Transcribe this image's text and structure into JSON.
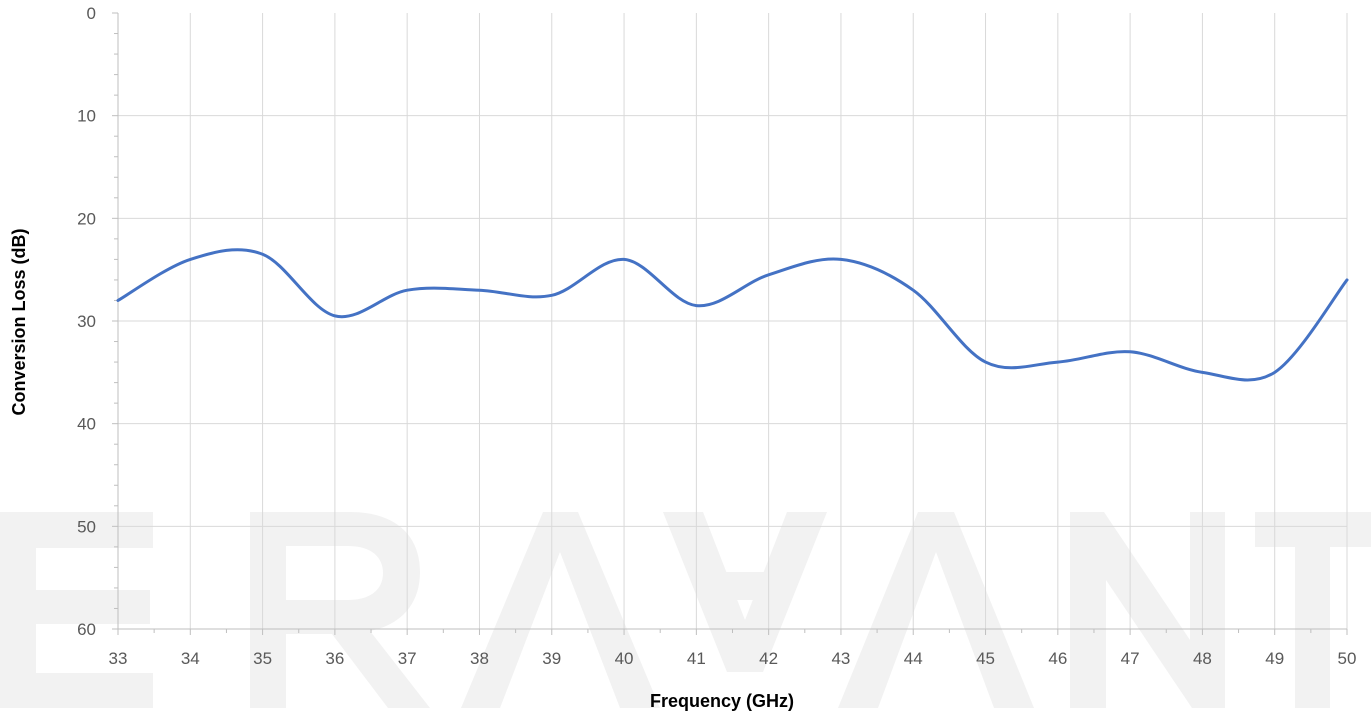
{
  "chart_data": {
    "type": "line",
    "title": "",
    "xlabel": "Frequency (GHz)",
    "ylabel": "Conversion Loss (dB)",
    "xlim": [
      33,
      50
    ],
    "ylim": [
      0,
      60
    ],
    "y_axis_reversed": true,
    "x_ticks": [
      "33",
      "34",
      "35",
      "36",
      "37",
      "38",
      "39",
      "40",
      "41",
      "42",
      "43",
      "44",
      "45",
      "46",
      "47",
      "48",
      "49",
      "50"
    ],
    "y_ticks": [
      "0",
      "10",
      "20",
      "30",
      "40",
      "50",
      "60"
    ],
    "grid": true,
    "legend": "none",
    "series": [
      {
        "color": "#4472c4",
        "smooth": true,
        "x": [
          33,
          34,
          35,
          36,
          37,
          38,
          39,
          40,
          41,
          42,
          43,
          44,
          45,
          46,
          47,
          48,
          49,
          50
        ],
        "y": [
          28,
          24,
          23.5,
          29.5,
          27,
          27,
          27.5,
          24,
          28.5,
          25.5,
          24,
          27,
          34,
          34,
          33,
          35,
          35,
          26
        ]
      }
    ]
  },
  "watermark": "ERAVANT"
}
